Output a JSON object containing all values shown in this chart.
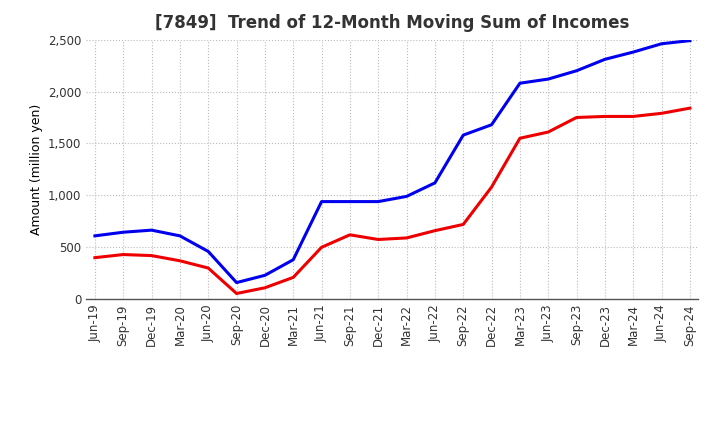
{
  "title": "[7849]  Trend of 12-Month Moving Sum of Incomes",
  "ylabel": "Amount (million yen)",
  "x_labels": [
    "Jun-19",
    "Sep-19",
    "Dec-19",
    "Mar-20",
    "Jun-20",
    "Sep-20",
    "Dec-20",
    "Mar-21",
    "Jun-21",
    "Sep-21",
    "Dec-21",
    "Mar-22",
    "Jun-22",
    "Sep-22",
    "Dec-22",
    "Mar-23",
    "Jun-23",
    "Sep-23",
    "Dec-23",
    "Mar-24",
    "Jun-24",
    "Sep-24"
  ],
  "ordinary_income": [
    610,
    645,
    665,
    610,
    460,
    160,
    230,
    380,
    940,
    940,
    940,
    990,
    1120,
    1580,
    1680,
    2080,
    2120,
    2200,
    2310,
    2380,
    2460,
    2490
  ],
  "net_income": [
    400,
    430,
    420,
    370,
    300,
    55,
    110,
    210,
    500,
    620,
    575,
    590,
    660,
    720,
    1080,
    1550,
    1610,
    1750,
    1760,
    1760,
    1790,
    1840
  ],
  "ordinary_color": "#0000ee",
  "net_color": "#ee0000",
  "ylim": [
    0,
    2500
  ],
  "yticks": [
    0,
    500,
    1000,
    1500,
    2000,
    2500
  ],
  "background_color": "#ffffff",
  "grid_color": "#bbbbbb",
  "line_width": 2.2,
  "title_fontsize": 12,
  "legend_fontsize": 10,
  "axis_label_fontsize": 9,
  "tick_fontsize": 8.5
}
